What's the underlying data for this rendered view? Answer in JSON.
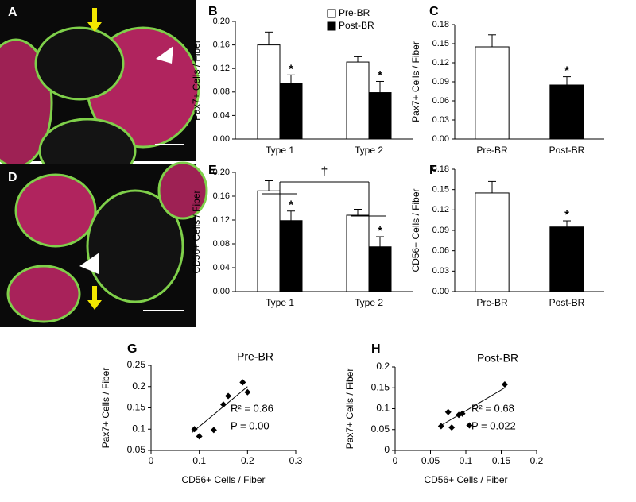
{
  "image_panels": [
    {
      "label": "A"
    },
    {
      "label": "D"
    }
  ],
  "chart_data": [
    {
      "type": "bar",
      "panel": "B",
      "y_label": "Pax7+ Cells / Fiber",
      "categories": [
        "Type 1",
        "Type 2"
      ],
      "series": [
        {
          "name": "Pre-BR",
          "color": "#ffffff",
          "values": [
            0.16,
            0.131
          ],
          "errors": [
            0.022,
            0.009
          ],
          "marks": [
            null,
            null
          ]
        },
        {
          "name": "Post-BR",
          "color": "#000000",
          "values": [
            0.095,
            0.079
          ],
          "errors": [
            0.014,
            0.019
          ],
          "marks": [
            "*",
            "*"
          ]
        }
      ],
      "ylim": [
        0,
        0.2
      ],
      "yticks": [
        {
          "value": 0,
          "label": "0.00"
        },
        0.04,
        0.08,
        0.12,
        0.16,
        {
          "value": 0.2,
          "label": "0.20"
        }
      ],
      "legend": "top-right"
    },
    {
      "type": "bar",
      "panel": "C",
      "y_label": "Pax7+ Cells / Fiber",
      "categories": [
        "Pre-BR",
        "Post-BR"
      ],
      "values": [
        0.145,
        0.085
      ],
      "errors": [
        0.019,
        0.013
      ],
      "colors": [
        "#ffffff",
        "#000000"
      ],
      "marks": [
        null,
        "*"
      ],
      "ylim": [
        0,
        0.18
      ],
      "yticks": [
        {
          "value": 0,
          "label": "0.00"
        },
        0.03,
        0.06,
        0.09,
        0.12,
        0.15,
        0.18
      ]
    },
    {
      "type": "bar",
      "panel": "E",
      "y_label": "CD56+ Cells / Fiber",
      "categories": [
        "Type 1",
        "Type 2"
      ],
      "series": [
        {
          "name": "Pre-BR",
          "color": "#ffffff",
          "values": [
            0.169,
            0.128
          ],
          "errors": [
            0.017,
            0.01
          ],
          "marks": [
            null,
            null
          ]
        },
        {
          "name": "Post-BR",
          "color": "#000000",
          "values": [
            0.119,
            0.075
          ],
          "errors": [
            0.016,
            0.017
          ],
          "marks": [
            "*",
            "*"
          ]
        }
      ],
      "annotation": "†",
      "ylim": [
        0,
        0.2
      ],
      "yticks": [
        {
          "value": 0,
          "label": "0.00"
        },
        0.04,
        0.08,
        0.12,
        0.16,
        {
          "value": 0.2,
          "label": "0.20"
        }
      ]
    },
    {
      "type": "bar",
      "panel": "F",
      "y_label": "CD56+ Cells / Fiber",
      "categories": [
        "Pre-BR",
        "Post-BR"
      ],
      "values": [
        0.145,
        0.095
      ],
      "errors": [
        0.017,
        0.009
      ],
      "colors": [
        "#ffffff",
        "#000000"
      ],
      "marks": [
        null,
        "*"
      ],
      "ylim": [
        0,
        0.18
      ],
      "yticks": [
        {
          "value": 0,
          "label": "0.00"
        },
        0.03,
        0.06,
        0.09,
        0.12,
        0.15,
        0.18
      ]
    },
    {
      "type": "scatter",
      "panel": "G",
      "title": "Pre-BR",
      "x_label": "CD56+ Cells / Fiber",
      "y_label": "Pax7+ Cells / Fiber",
      "x": [
        0.09,
        0.1,
        0.13,
        0.15,
        0.16,
        0.19,
        0.2
      ],
      "y": [
        0.1,
        0.083,
        0.098,
        0.158,
        0.178,
        0.21,
        0.187
      ],
      "color": "#000000",
      "trendline": {
        "x": [
          0.085,
          0.2
        ],
        "y": [
          0.092,
          0.2
        ]
      },
      "stats": [
        "R² = 0.86",
        "P = 0.00"
      ],
      "xlim": [
        0,
        0.3
      ],
      "xticks": [
        0,
        0.1,
        0.2,
        0.3
      ],
      "ylim": [
        0.05,
        0.25
      ],
      "yticks": [
        0.05,
        0.1,
        0.15,
        0.2,
        0.25
      ]
    },
    {
      "type": "scatter",
      "panel": "H",
      "title": "Post-BR",
      "x_label": "CD56+ Cells / Fiber",
      "y_label": "Pax7+ Cells / Fiber",
      "x": [
        0.065,
        0.075,
        0.08,
        0.09,
        0.095,
        0.105,
        0.155
      ],
      "y": [
        0.058,
        0.092,
        0.055,
        0.085,
        0.088,
        0.06,
        0.158
      ],
      "color": "#000000",
      "trendline": {
        "x": [
          0.065,
          0.155
        ],
        "y": [
          0.06,
          0.15
        ]
      },
      "stats": [
        "R² = 0.68",
        "P = 0.022"
      ],
      "xlim": [
        0,
        0.2
      ],
      "xticks": [
        0,
        0.05,
        0.1,
        0.15,
        0.2
      ],
      "ylim": [
        0,
        0.2
      ],
      "yticks": [
        0,
        0.05,
        0.1,
        0.15,
        0.2
      ]
    }
  ]
}
